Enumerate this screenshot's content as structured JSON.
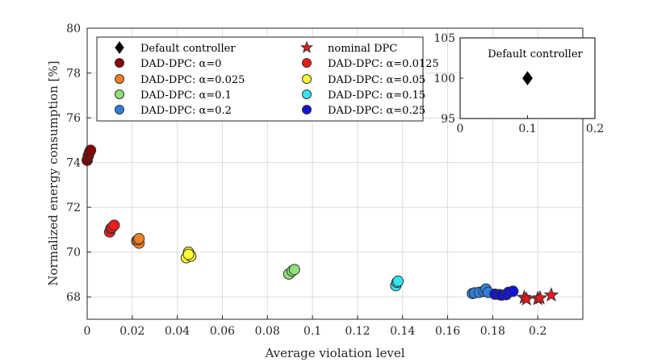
{
  "chart_data": {
    "type": "scatter",
    "xlabel": "Average violation level",
    "ylabel": "Normalized energy consumption [%]",
    "xlim": [
      0,
      0.22
    ],
    "ylim": [
      67,
      80
    ],
    "x_ticks": [
      "0",
      "0.02",
      "0.04",
      "0.06",
      "0.08",
      "0.1",
      "0.12",
      "0.14",
      "0.16",
      "0.18",
      "0.2"
    ],
    "y_ticks": [
      "68",
      "70",
      "72",
      "74",
      "76",
      "78",
      "80"
    ],
    "grid": true,
    "legend_position": "top-left",
    "series": [
      {
        "name": "Default controller",
        "marker": "diamond",
        "color": "#000000",
        "legend_label": "Default controller",
        "points": []
      },
      {
        "name": "nominal DPC",
        "marker": "star",
        "color": "#e8181c",
        "legend_label": "nominal DPC",
        "points": [
          [
            0.194,
            67.97
          ],
          [
            0.195,
            67.9
          ],
          [
            0.2,
            67.92
          ],
          [
            0.201,
            67.95
          ],
          [
            0.206,
            68.08
          ]
        ]
      },
      {
        "name": "DAD-DPC: α=0",
        "marker": "circle",
        "color": "#8b0000",
        "legend_label": "DAD-DPC: α=0",
        "points": [
          [
            0.0,
            74.1
          ],
          [
            0.0005,
            74.3
          ],
          [
            0.001,
            74.45
          ],
          [
            0.0015,
            74.55
          ]
        ]
      },
      {
        "name": "DAD-DPC: α=0.0125",
        "marker": "circle",
        "color": "#ee1c1c",
        "legend_label": "DAD-DPC: α=0.0125",
        "points": [
          [
            0.01,
            70.9
          ],
          [
            0.0105,
            71.05
          ],
          [
            0.011,
            71.1
          ],
          [
            0.012,
            71.2
          ]
        ]
      },
      {
        "name": "DAD-DPC: α=0.025",
        "marker": "circle",
        "color": "#f28121",
        "legend_label": "DAD-DPC: α=0.025",
        "points": [
          [
            0.022,
            70.5
          ],
          [
            0.023,
            70.4
          ],
          [
            0.0225,
            70.55
          ],
          [
            0.023,
            70.6
          ]
        ]
      },
      {
        "name": "DAD-DPC: α=0.05",
        "marker": "circle",
        "color": "#ffff33",
        "legend_label": "DAD-DPC: α=0.05",
        "points": [
          [
            0.044,
            69.75
          ],
          [
            0.045,
            70.0
          ],
          [
            0.046,
            69.82
          ],
          [
            0.045,
            69.9
          ]
        ]
      },
      {
        "name": "DAD-DPC: α=0.1",
        "marker": "circle",
        "color": "#8ee07a",
        "legend_label": "DAD-DPC: α=0.1",
        "points": [
          [
            0.0895,
            69.02
          ],
          [
            0.091,
            69.15
          ],
          [
            0.092,
            69.22
          ]
        ]
      },
      {
        "name": "DAD-DPC: α=0.15",
        "marker": "circle",
        "color": "#33e5f0",
        "legend_label": "DAD-DPC: α=0.15",
        "points": [
          [
            0.137,
            68.5
          ],
          [
            0.1375,
            68.65
          ],
          [
            0.138,
            68.7
          ]
        ]
      },
      {
        "name": "DAD-DPC: α=0.2",
        "marker": "circle",
        "color": "#2e7fe0",
        "legend_label": "DAD-DPC: α=0.2",
        "points": [
          [
            0.171,
            68.15
          ],
          [
            0.172,
            68.18
          ],
          [
            0.174,
            68.2
          ],
          [
            0.176,
            68.25
          ],
          [
            0.177,
            68.35
          ],
          [
            0.178,
            68.2
          ]
        ]
      },
      {
        "name": "DAD-DPC: α=0.25",
        "marker": "circle",
        "color": "#1212d4",
        "legend_label": "DAD-DPC: α=0.25",
        "points": [
          [
            0.181,
            68.12
          ],
          [
            0.183,
            68.1
          ],
          [
            0.184,
            68.08
          ],
          [
            0.186,
            68.1
          ],
          [
            0.187,
            68.2
          ],
          [
            0.189,
            68.25
          ]
        ]
      }
    ],
    "inset": {
      "title": "Default controller",
      "xlim": [
        0,
        0.2
      ],
      "ylim": [
        95,
        105
      ],
      "x_ticks": [
        "0",
        "0.1",
        "0.2"
      ],
      "y_ticks": [
        "95",
        "100",
        "105"
      ],
      "points": [
        [
          0.1,
          100
        ]
      ]
    }
  }
}
